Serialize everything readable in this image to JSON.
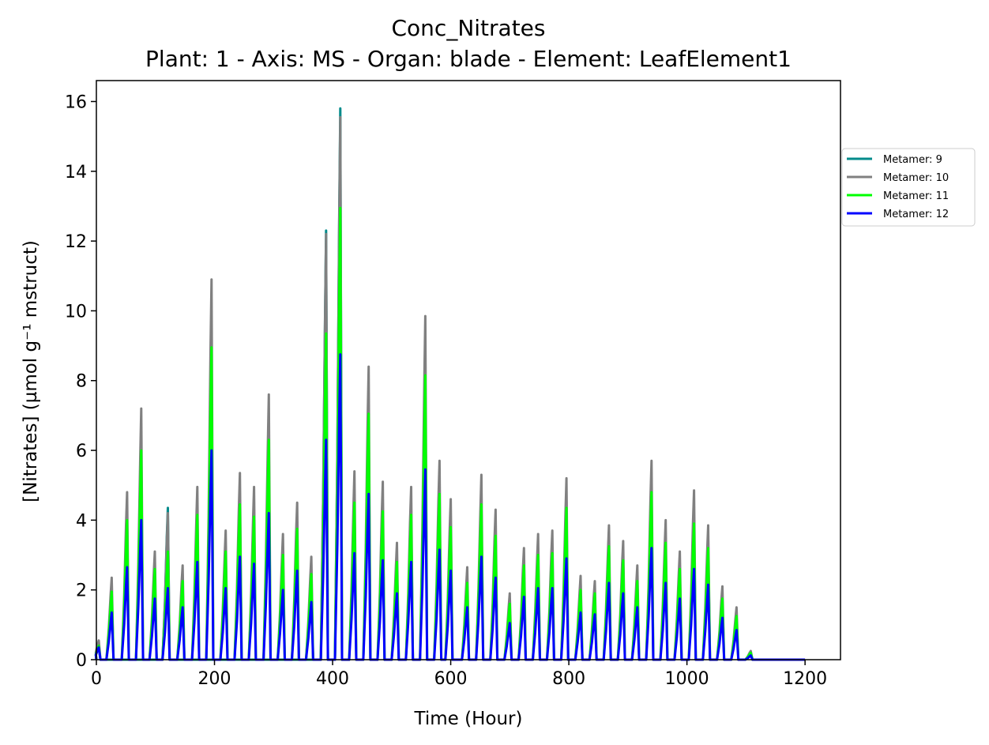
{
  "chart_data": {
    "type": "line",
    "title": "Conc_Nitrates",
    "subtitle": "Plant: 1 - Axis: MS - Organ: blade - Element: LeafElement1",
    "xlabel": "Time (Hour)",
    "ylabel": "[Nitrates] (µmol g⁻¹ mstruct)",
    "xlim": [
      0,
      1260
    ],
    "ylim": [
      0,
      16.6
    ],
    "xticks": [
      0,
      200,
      400,
      600,
      800,
      1000,
      1200
    ],
    "yticks": [
      0,
      2,
      4,
      6,
      8,
      10,
      12,
      14,
      16
    ],
    "grid": false,
    "legend_position": "right, outside plot",
    "series": [
      {
        "name": "Metamer: 9",
        "color": "#008b8b",
        "peaks": [
          {
            "t": 4,
            "v": 0.35
          },
          {
            "t": 121,
            "v": 4.35
          },
          {
            "t": 389,
            "v": 12.3
          },
          {
            "t": 413,
            "v": 15.8
          }
        ]
      },
      {
        "name": "Metamer: 10",
        "color": "#808080",
        "peaks": [
          {
            "t": 4,
            "v": 0.55
          },
          {
            "t": 26,
            "v": 2.35
          },
          {
            "t": 52,
            "v": 4.8
          },
          {
            "t": 76,
            "v": 7.2
          },
          {
            "t": 99,
            "v": 3.1
          },
          {
            "t": 121,
            "v": 4.2
          },
          {
            "t": 146,
            "v": 2.7
          },
          {
            "t": 171,
            "v": 4.95
          },
          {
            "t": 195,
            "v": 10.9
          },
          {
            "t": 219,
            "v": 3.7
          },
          {
            "t": 243,
            "v": 5.35
          },
          {
            "t": 267,
            "v": 4.95
          },
          {
            "t": 292,
            "v": 7.6
          },
          {
            "t": 316,
            "v": 3.6
          },
          {
            "t": 340,
            "v": 4.5
          },
          {
            "t": 364,
            "v": 2.95
          },
          {
            "t": 389,
            "v": 12.2
          },
          {
            "t": 413,
            "v": 15.55
          },
          {
            "t": 437,
            "v": 5.4
          },
          {
            "t": 461,
            "v": 8.4
          },
          {
            "t": 485,
            "v": 5.1
          },
          {
            "t": 509,
            "v": 3.35
          },
          {
            "t": 533,
            "v": 4.95
          },
          {
            "t": 557,
            "v": 9.85
          },
          {
            "t": 581,
            "v": 5.7
          },
          {
            "t": 600,
            "v": 4.6
          },
          {
            "t": 628,
            "v": 2.65
          },
          {
            "t": 652,
            "v": 5.3
          },
          {
            "t": 676,
            "v": 4.3
          },
          {
            "t": 700,
            "v": 1.9
          },
          {
            "t": 724,
            "v": 3.2
          },
          {
            "t": 748,
            "v": 3.6
          },
          {
            "t": 772,
            "v": 3.7
          },
          {
            "t": 796,
            "v": 5.2
          },
          {
            "t": 820,
            "v": 2.4
          },
          {
            "t": 844,
            "v": 2.25
          },
          {
            "t": 868,
            "v": 3.85
          },
          {
            "t": 892,
            "v": 3.4
          },
          {
            "t": 916,
            "v": 2.7
          },
          {
            "t": 940,
            "v": 5.7
          },
          {
            "t": 964,
            "v": 4.0
          },
          {
            "t": 988,
            "v": 3.1
          },
          {
            "t": 1012,
            "v": 4.85
          },
          {
            "t": 1036,
            "v": 3.85
          },
          {
            "t": 1060,
            "v": 2.1
          },
          {
            "t": 1084,
            "v": 1.5
          },
          {
            "t": 1108,
            "v": 0.25
          }
        ]
      },
      {
        "name": "Metamer: 11",
        "color": "#00ff00",
        "peaks": [
          {
            "t": 4,
            "v": 0.4
          },
          {
            "t": 26,
            "v": 1.95
          },
          {
            "t": 52,
            "v": 4.0
          },
          {
            "t": 76,
            "v": 6.0
          },
          {
            "t": 99,
            "v": 2.6
          },
          {
            "t": 121,
            "v": 3.1
          },
          {
            "t": 146,
            "v": 2.25
          },
          {
            "t": 171,
            "v": 4.15
          },
          {
            "t": 195,
            "v": 8.95
          },
          {
            "t": 219,
            "v": 3.1
          },
          {
            "t": 243,
            "v": 4.45
          },
          {
            "t": 267,
            "v": 4.1
          },
          {
            "t": 292,
            "v": 6.3
          },
          {
            "t": 316,
            "v": 3.0
          },
          {
            "t": 340,
            "v": 3.75
          },
          {
            "t": 364,
            "v": 2.45
          },
          {
            "t": 389,
            "v": 9.35
          },
          {
            "t": 413,
            "v": 12.95
          },
          {
            "t": 437,
            "v": 4.5
          },
          {
            "t": 461,
            "v": 7.05
          },
          {
            "t": 485,
            "v": 4.25
          },
          {
            "t": 509,
            "v": 2.8
          },
          {
            "t": 533,
            "v": 4.15
          },
          {
            "t": 557,
            "v": 8.15
          },
          {
            "t": 581,
            "v": 4.75
          },
          {
            "t": 600,
            "v": 3.8
          },
          {
            "t": 628,
            "v": 2.2
          },
          {
            "t": 652,
            "v": 4.45
          },
          {
            "t": 676,
            "v": 3.55
          },
          {
            "t": 700,
            "v": 1.6
          },
          {
            "t": 724,
            "v": 2.7
          },
          {
            "t": 748,
            "v": 3.0
          },
          {
            "t": 772,
            "v": 3.05
          },
          {
            "t": 796,
            "v": 4.35
          },
          {
            "t": 820,
            "v": 2.0
          },
          {
            "t": 844,
            "v": 1.9
          },
          {
            "t": 868,
            "v": 3.25
          },
          {
            "t": 892,
            "v": 2.85
          },
          {
            "t": 916,
            "v": 2.25
          },
          {
            "t": 940,
            "v": 4.8
          },
          {
            "t": 964,
            "v": 3.35
          },
          {
            "t": 988,
            "v": 2.6
          },
          {
            "t": 1012,
            "v": 3.9
          },
          {
            "t": 1036,
            "v": 3.2
          },
          {
            "t": 1060,
            "v": 1.75
          },
          {
            "t": 1084,
            "v": 1.25
          },
          {
            "t": 1108,
            "v": 0.2
          }
        ]
      },
      {
        "name": "Metamer: 12",
        "color": "#0000ff",
        "peaks": [
          {
            "t": 4,
            "v": 0.35
          },
          {
            "t": 26,
            "v": 1.35
          },
          {
            "t": 52,
            "v": 2.65
          },
          {
            "t": 76,
            "v": 4.0
          },
          {
            "t": 99,
            "v": 1.75
          },
          {
            "t": 121,
            "v": 2.05
          },
          {
            "t": 146,
            "v": 1.5
          },
          {
            "t": 171,
            "v": 2.8
          },
          {
            "t": 195,
            "v": 6.0
          },
          {
            "t": 219,
            "v": 2.05
          },
          {
            "t": 243,
            "v": 2.95
          },
          {
            "t": 267,
            "v": 2.75
          },
          {
            "t": 292,
            "v": 4.2
          },
          {
            "t": 316,
            "v": 2.0
          },
          {
            "t": 340,
            "v": 2.55
          },
          {
            "t": 364,
            "v": 1.65
          },
          {
            "t": 389,
            "v": 6.3
          },
          {
            "t": 413,
            "v": 8.75
          },
          {
            "t": 437,
            "v": 3.05
          },
          {
            "t": 461,
            "v": 4.75
          },
          {
            "t": 485,
            "v": 2.85
          },
          {
            "t": 509,
            "v": 1.9
          },
          {
            "t": 533,
            "v": 2.8
          },
          {
            "t": 557,
            "v": 5.45
          },
          {
            "t": 581,
            "v": 3.15
          },
          {
            "t": 600,
            "v": 2.55
          },
          {
            "t": 628,
            "v": 1.5
          },
          {
            "t": 652,
            "v": 2.95
          },
          {
            "t": 676,
            "v": 2.35
          },
          {
            "t": 700,
            "v": 1.05
          },
          {
            "t": 724,
            "v": 1.8
          },
          {
            "t": 748,
            "v": 2.05
          },
          {
            "t": 772,
            "v": 2.05
          },
          {
            "t": 796,
            "v": 2.9
          },
          {
            "t": 820,
            "v": 1.35
          },
          {
            "t": 844,
            "v": 1.3
          },
          {
            "t": 868,
            "v": 2.2
          },
          {
            "t": 892,
            "v": 1.9
          },
          {
            "t": 916,
            "v": 1.5
          },
          {
            "t": 940,
            "v": 3.2
          },
          {
            "t": 964,
            "v": 2.2
          },
          {
            "t": 988,
            "v": 1.75
          },
          {
            "t": 1012,
            "v": 2.6
          },
          {
            "t": 1036,
            "v": 2.15
          },
          {
            "t": 1060,
            "v": 1.2
          },
          {
            "t": 1084,
            "v": 0.85
          },
          {
            "t": 1108,
            "v": 0.12
          }
        ]
      }
    ],
    "series_end_time": 1200
  }
}
